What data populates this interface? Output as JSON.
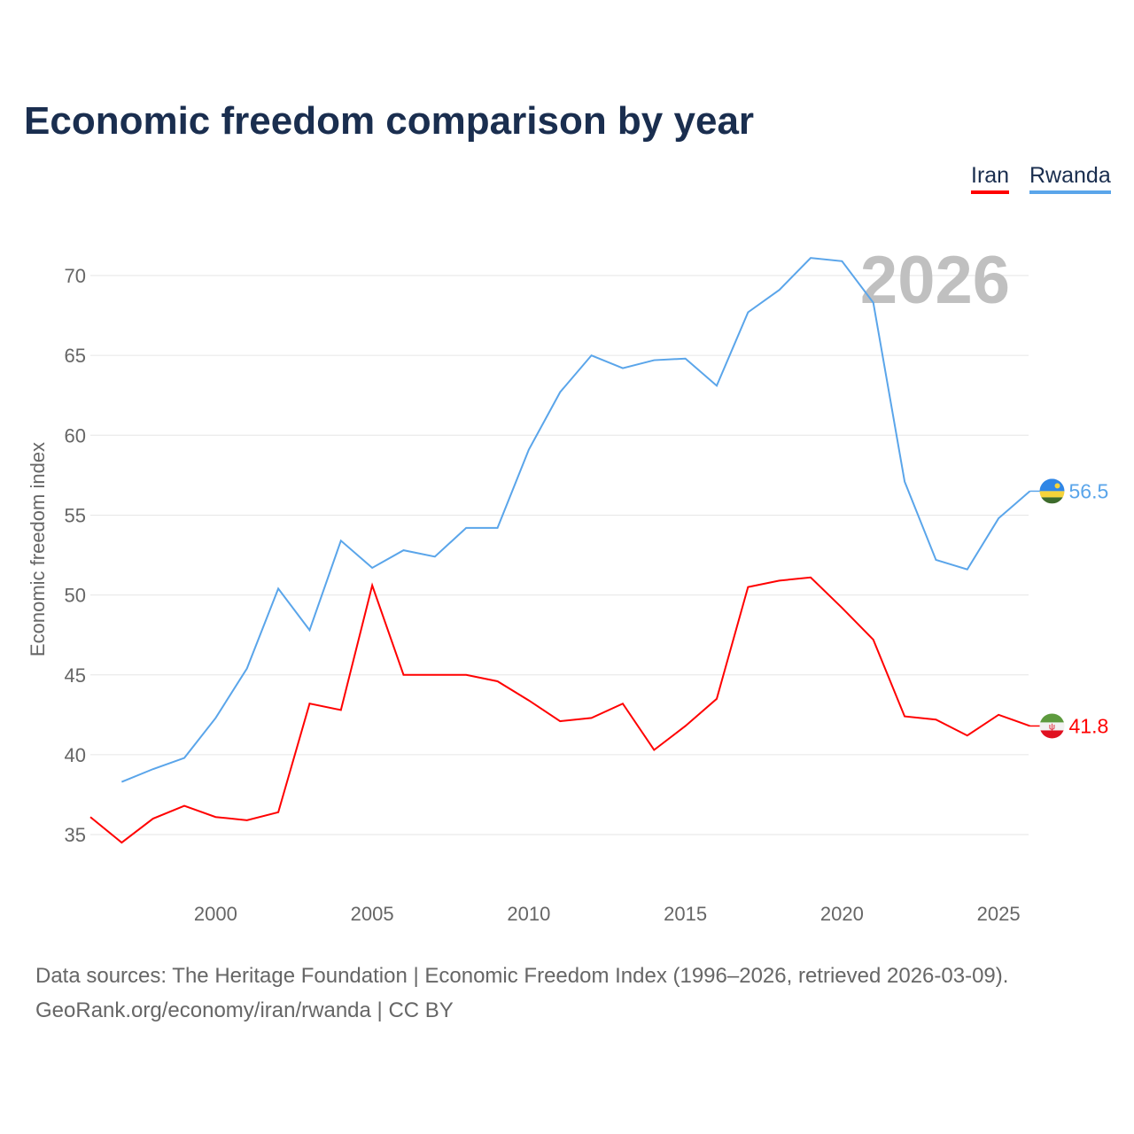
{
  "title": "Economic freedom comparison by year",
  "footer": {
    "line1": "Data sources: The Heritage Foundation | Economic Freedom Index (1996–2026, retrieved 2026-03-09).",
    "line2": "GeoRank.org/economy/iran/rwanda | CC BY"
  },
  "chart_data": {
    "type": "line",
    "title": "Economic freedom comparison by year",
    "ylabel": "Economic freedom index",
    "xlabel": "",
    "year_label": "2026",
    "ylim": [
      32,
      72
    ],
    "xlim": [
      1996,
      2026
    ],
    "yticks": [
      35,
      40,
      45,
      50,
      55,
      60,
      65,
      70
    ],
    "xticks": [
      2000,
      2005,
      2010,
      2015,
      2020,
      2025
    ],
    "legend": "top-right",
    "series": [
      {
        "name": "Iran",
        "color": "#ff0000",
        "end_label": "41.8",
        "x": [
          1996,
          1997,
          1998,
          1999,
          2000,
          2001,
          2002,
          2003,
          2004,
          2005,
          2006,
          2007,
          2008,
          2009,
          2010,
          2011,
          2012,
          2013,
          2014,
          2015,
          2016,
          2017,
          2018,
          2019,
          2020,
          2021,
          2022,
          2023,
          2024,
          2025,
          2026
        ],
        "values": [
          36.1,
          34.5,
          36.0,
          36.8,
          36.1,
          35.9,
          36.4,
          43.2,
          42.8,
          50.6,
          45.0,
          45.0,
          45.0,
          44.6,
          43.4,
          42.1,
          42.3,
          43.2,
          40.3,
          41.8,
          43.5,
          50.5,
          50.9,
          51.1,
          49.2,
          47.2,
          42.4,
          42.2,
          41.2,
          42.5,
          41.8
        ]
      },
      {
        "name": "Rwanda",
        "color": "#5aa5ea",
        "end_label": "56.5",
        "x": [
          1997,
          1998,
          1999,
          2000,
          2001,
          2002,
          2003,
          2004,
          2005,
          2006,
          2007,
          2008,
          2009,
          2010,
          2011,
          2012,
          2013,
          2014,
          2015,
          2016,
          2017,
          2018,
          2019,
          2020,
          2021,
          2022,
          2023,
          2024,
          2025,
          2026
        ],
        "values": [
          38.3,
          39.1,
          39.8,
          42.3,
          45.4,
          50.4,
          47.8,
          53.4,
          51.7,
          52.8,
          52.4,
          54.2,
          54.2,
          59.1,
          62.7,
          65.0,
          64.2,
          64.7,
          64.8,
          63.1,
          67.7,
          69.1,
          71.1,
          70.9,
          68.3,
          57.1,
          52.2,
          51.6,
          54.8,
          56.5
        ]
      }
    ]
  }
}
